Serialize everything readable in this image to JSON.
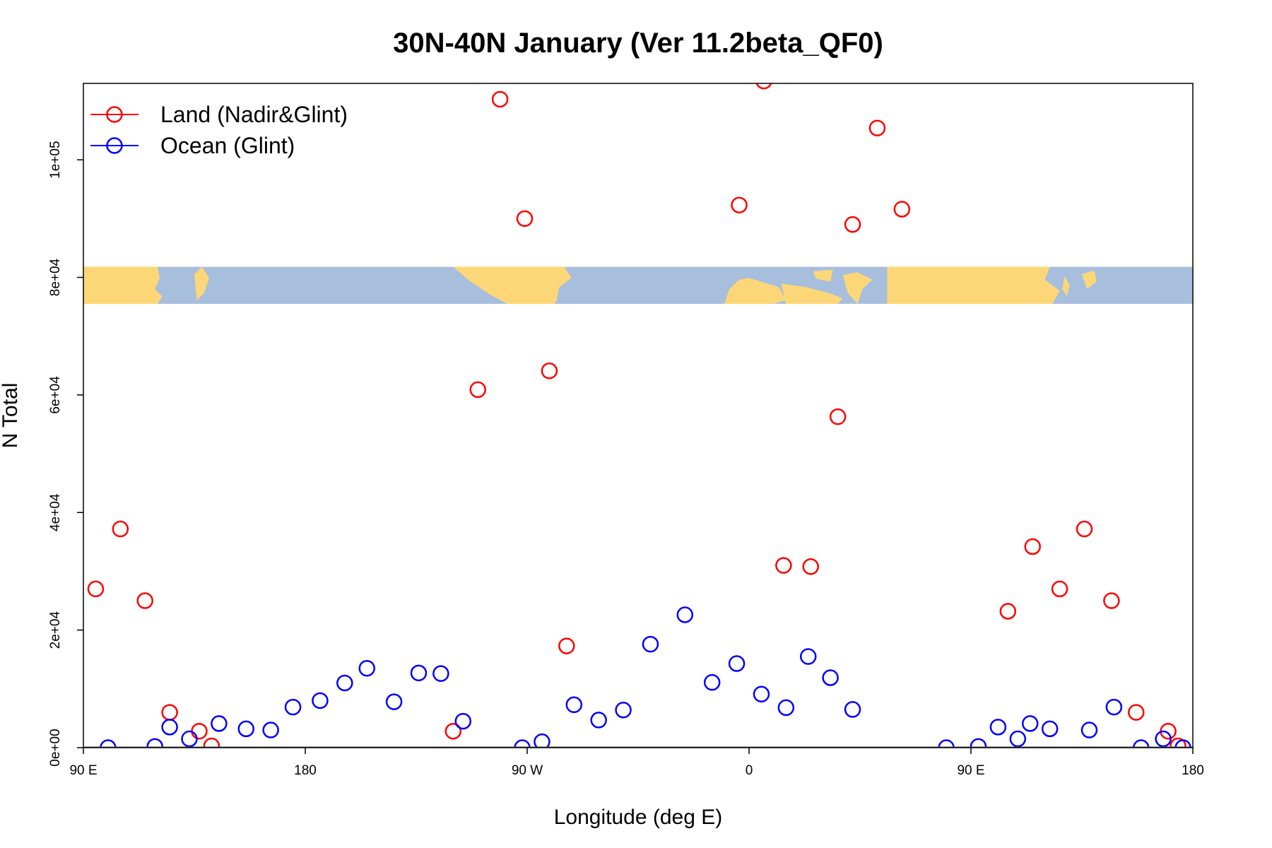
{
  "chart_data": {
    "type": "scatter",
    "title": "30N-40N January (Ver 11.2beta_QF0)",
    "xlabel": "Longitude (deg E)",
    "ylabel": "N Total",
    "xlim": [
      90,
      540
    ],
    "ylim": [
      0,
      113000
    ],
    "x_ticks": [
      {
        "value": 90,
        "label": "90 E"
      },
      {
        "value": 180,
        "label": "180"
      },
      {
        "value": 270,
        "label": "90 W"
      },
      {
        "value": 360,
        "label": "0"
      },
      {
        "value": 450,
        "label": "90 E"
      },
      {
        "value": 540,
        "label": "180"
      }
    ],
    "y_ticks": [
      {
        "value": 0,
        "label": "0e+00"
      },
      {
        "value": 20000,
        "label": "2e+04"
      },
      {
        "value": 40000,
        "label": "4e+04"
      },
      {
        "value": 60000,
        "label": "6e+04"
      },
      {
        "value": 80000,
        "label": "8e+04"
      },
      {
        "value": 100000,
        "label": "1e+05"
      }
    ],
    "legend_position": "top-left",
    "grid": false,
    "map_strip": {
      "y_range": [
        75500,
        81800
      ],
      "land_color": "#FDD777",
      "ocean_color": "#A7BEDD"
    },
    "series": [
      {
        "name": "Land (Nadir&Glint)",
        "color": "#FF0000",
        "x": [
          95,
          105,
          115,
          125,
          137,
          142,
          240,
          250,
          259,
          269,
          279,
          286,
          356,
          366,
          374,
          385,
          396,
          402,
          412,
          422,
          465,
          475,
          486,
          496,
          507,
          517,
          530,
          534
        ],
        "y": [
          27000,
          37200,
          25000,
          6000,
          2800,
          300,
          2800,
          60900,
          110300,
          90000,
          64100,
          17300,
          92300,
          113400,
          31000,
          30800,
          56300,
          89000,
          105400,
          91600,
          23200,
          34200,
          27000,
          37200,
          25000,
          6000,
          2800,
          300
        ]
      },
      {
        "name": "Ocean (Glint)",
        "color": "#0000FF",
        "x": [
          100,
          119,
          125,
          133,
          145,
          156,
          166,
          175,
          186,
          196,
          205,
          216,
          226,
          235,
          244,
          268,
          276,
          289,
          299,
          309,
          320,
          334,
          345,
          355,
          365,
          375,
          384,
          393,
          402,
          440,
          453,
          461,
          469,
          474,
          482,
          498,
          508,
          519,
          528,
          536
        ],
        "y": [
          0,
          200,
          3500,
          1500,
          4100,
          3200,
          3000,
          6900,
          8000,
          11000,
          13500,
          7800,
          12700,
          12600,
          4500,
          0,
          1000,
          7300,
          4700,
          6400,
          17600,
          22600,
          11100,
          14300,
          9100,
          6800,
          15500,
          11900,
          6500,
          0,
          200,
          3500,
          1500,
          4100,
          3200,
          3000,
          6900,
          0,
          1500,
          0
        ]
      }
    ]
  }
}
